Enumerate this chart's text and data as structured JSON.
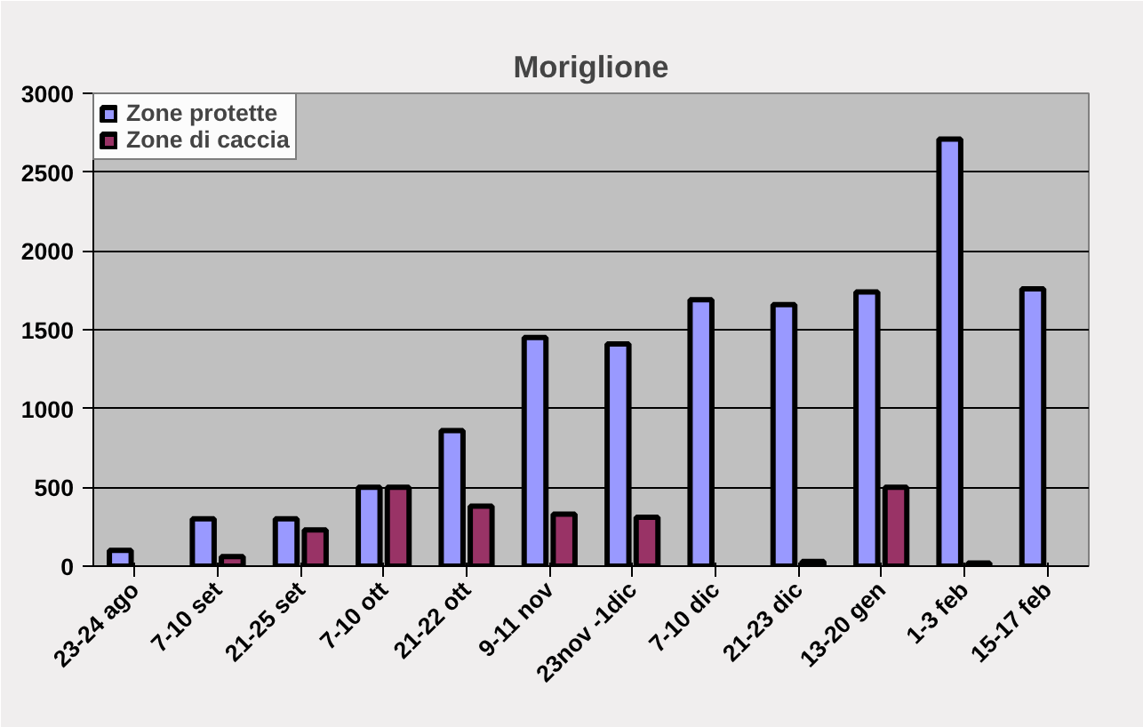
{
  "chart_data": {
    "type": "bar",
    "title": "Moriglione",
    "categories": [
      "23-24 ago",
      "7-10 set",
      "21-25 set",
      "7-10 ott",
      "21-22 ott",
      "9-11 nov",
      "23nov -1dic",
      "7-10 dic",
      "21-23 dic",
      "13-20 gen",
      "1-3 feb",
      "15-17 feb"
    ],
    "series": [
      {
        "name": "Zone protette",
        "color": "#9999ff",
        "values": [
          100,
          300,
          300,
          500,
          860,
          1450,
          1410,
          1690,
          1660,
          1740,
          2710,
          1760
        ]
      },
      {
        "name": "Zone di caccia",
        "color": "#993366",
        "values": [
          null,
          60,
          230,
          500,
          380,
          330,
          310,
          null,
          30,
          500,
          20,
          null
        ]
      }
    ],
    "ylim": [
      0,
      3000
    ],
    "yticks": [
      0,
      500,
      1000,
      1500,
      2000,
      2500,
      3000
    ],
    "grid": "y",
    "legend": "top left"
  }
}
